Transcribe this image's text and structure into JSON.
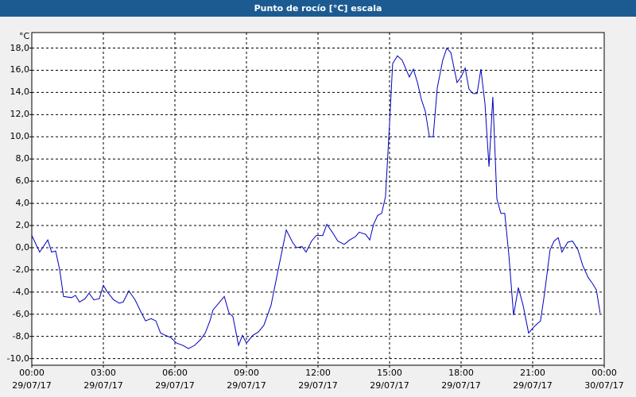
{
  "chart_data": {
    "type": "line",
    "title": "Punto de rocío [°C] escala",
    "y_label": "°C",
    "x": [
      0,
      0.33,
      0.67,
      0.83,
      1,
      1.17,
      1.33,
      1.67,
      1.83,
      2,
      2.23,
      2.4,
      2.6,
      2.83,
      3,
      3.17,
      3.43,
      3.67,
      3.83,
      4.07,
      4.33,
      4.6,
      4.77,
      5,
      5.2,
      5.4,
      5.6,
      5.83,
      6.07,
      6.33,
      6.57,
      6.83,
      7.07,
      7.27,
      7.47,
      7.6,
      7.8,
      8.07,
      8.27,
      8.43,
      8.67,
      8.83,
      9,
      9.27,
      9.5,
      9.73,
      10.03,
      10.33,
      10.67,
      10.93,
      11.1,
      11.33,
      11.5,
      11.73,
      11.93,
      12.2,
      12.37,
      12.6,
      12.83,
      13.1,
      13.33,
      13.57,
      13.73,
      14,
      14.17,
      14.33,
      14.5,
      14.67,
      14.83,
      15,
      15.13,
      15.33,
      15.53,
      15.67,
      15.83,
      16,
      16.17,
      16.33,
      16.5,
      16.67,
      16.83,
      17,
      17.23,
      17.4,
      17.57,
      17.83,
      18,
      18.17,
      18.33,
      18.5,
      18.67,
      18.83,
      19,
      19.17,
      19.33,
      19.5,
      19.67,
      19.83,
      20,
      20.2,
      20.4,
      20.6,
      20.83,
      21.07,
      21.33,
      21.5,
      21.73,
      21.9,
      22.07,
      22.23,
      22.47,
      22.67,
      22.9,
      23.1,
      23.33,
      23.5,
      23.67,
      23.83
    ],
    "series": [
      {
        "name": "Punto de rocío",
        "color": "#0000c0",
        "values": [
          1.1,
          -0.4,
          0.7,
          -0.4,
          -0.3,
          -2.0,
          -4.4,
          -4.5,
          -4.3,
          -4.9,
          -4.6,
          -4.1,
          -4.7,
          -4.6,
          -3.4,
          -4.0,
          -4.7,
          -5.0,
          -4.9,
          -3.9,
          -4.7,
          -5.9,
          -6.6,
          -6.4,
          -6.6,
          -7.7,
          -7.9,
          -8.1,
          -8.6,
          -8.8,
          -9.1,
          -8.8,
          -8.3,
          -7.7,
          -6.6,
          -5.6,
          -5.1,
          -4.4,
          -5.9,
          -6.2,
          -8.8,
          -7.9,
          -8.6,
          -7.9,
          -7.6,
          -7.0,
          -5.2,
          -2.0,
          1.6,
          0.5,
          0.0,
          0.1,
          -0.4,
          0.6,
          1.1,
          1.1,
          2.1,
          1.4,
          0.6,
          0.3,
          0.7,
          1.0,
          1.4,
          1.2,
          0.7,
          2.1,
          2.9,
          3.1,
          4.6,
          11.2,
          16.6,
          17.3,
          16.9,
          16.2,
          15.4,
          16.1,
          14.9,
          13.4,
          12.3,
          10.0,
          10.0,
          14.4,
          16.9,
          18.0,
          17.6,
          14.9,
          15.4,
          16.2,
          14.3,
          13.9,
          13.9,
          16.1,
          13.0,
          7.3,
          13.6,
          4.4,
          3.1,
          3.1,
          -0.6,
          -6.1,
          -3.6,
          -5.2,
          -7.7,
          -7.1,
          -6.6,
          -4.1,
          -0.2,
          0.6,
          0.9,
          -0.4,
          0.5,
          0.6,
          -0.2,
          -1.6,
          -2.7,
          -3.2,
          -3.8,
          -5.9
        ]
      }
    ],
    "xlim": [
      0,
      24
    ],
    "xticks": [
      {
        "value": 0,
        "label": "00:00\n29/07/17"
      },
      {
        "value": 3,
        "label": "03:00\n29/07/17"
      },
      {
        "value": 6,
        "label": "06:00\n29/07/17"
      },
      {
        "value": 9,
        "label": "09:00\n29/07/17"
      },
      {
        "value": 12,
        "label": "12:00\n29/07/17"
      },
      {
        "value": 15,
        "label": "15:00\n29/07/17"
      },
      {
        "value": 18,
        "label": "18:00\n29/07/17"
      },
      {
        "value": 21,
        "label": "21:00\n29/07/17"
      },
      {
        "value": 24,
        "label": "00:00\n30/07/17"
      }
    ],
    "ylim": [
      -10.6,
      19.4
    ],
    "yticks": [
      {
        "value": -10,
        "label": "-10,0"
      },
      {
        "value": -8,
        "label": "-8,0"
      },
      {
        "value": -6,
        "label": "-6,0"
      },
      {
        "value": -4,
        "label": "-4,0"
      },
      {
        "value": -2,
        "label": "-2,0"
      },
      {
        "value": 0,
        "label": "0,0"
      },
      {
        "value": 2,
        "label": "2,0"
      },
      {
        "value": 4,
        "label": "4,0"
      },
      {
        "value": 6,
        "label": "6,0"
      },
      {
        "value": 8,
        "label": "8,0"
      },
      {
        "value": 10,
        "label": "10,0"
      },
      {
        "value": 12,
        "label": "12,0"
      },
      {
        "value": 14,
        "label": "14,0"
      },
      {
        "value": 16,
        "label": "16,0"
      },
      {
        "value": 18,
        "label": "18,0"
      }
    ],
    "grid": true
  }
}
